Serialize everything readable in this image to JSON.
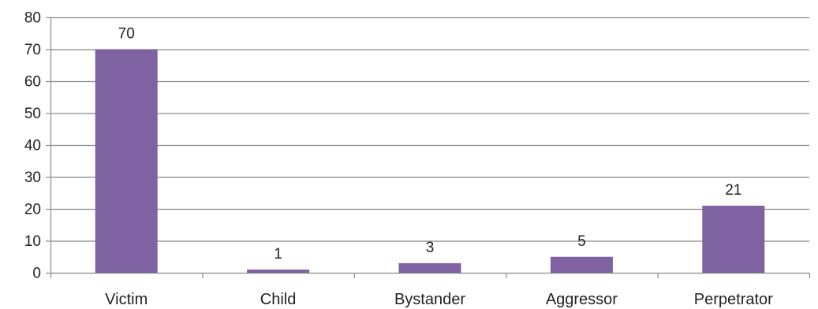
{
  "chart_data": {
    "type": "bar",
    "title": "",
    "xlabel": "",
    "ylabel": "",
    "categories": [
      "Victim",
      "Child",
      "Bystander",
      "Aggressor",
      "Perpetrator"
    ],
    "values": [
      70,
      1,
      3,
      5,
      21
    ],
    "data_labels": [
      "70",
      "1",
      "3",
      "5",
      "21"
    ],
    "ylim": [
      0,
      80
    ],
    "yticks": [
      0,
      10,
      20,
      30,
      40,
      50,
      60,
      70,
      80
    ],
    "grid": "horizontal",
    "legend": "none",
    "colors": {
      "bar": "#7e62a1",
      "grid": "#8a8a8a",
      "axis": "#8a8a8a",
      "text": "#222222"
    }
  }
}
